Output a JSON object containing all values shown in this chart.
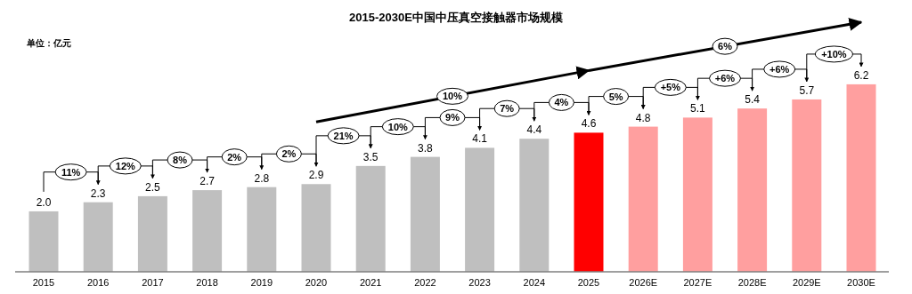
{
  "chart_data": {
    "type": "bar",
    "title": "2015-2030E中国中压真空接触器市场规模",
    "categories": [
      "2015",
      "2016",
      "2017",
      "2018",
      "2019",
      "2020",
      "2021",
      "2022",
      "2023",
      "2024",
      "2025",
      "2026E",
      "2027E",
      "2028E",
      "2029E",
      "2030E"
    ],
    "values": [
      2.0,
      2.3,
      2.5,
      2.7,
      2.8,
      2.9,
      3.5,
      3.8,
      4.1,
      4.4,
      4.6,
      4.8,
      5.1,
      5.4,
      5.7,
      6.2
    ],
    "colors": [
      "#bfbfbf",
      "#bfbfbf",
      "#bfbfbf",
      "#bfbfbf",
      "#bfbfbf",
      "#bfbfbf",
      "#bfbfbf",
      "#bfbfbf",
      "#bfbfbf",
      "#bfbfbf",
      "#ff0000",
      "#ff9f9f",
      "#ff9f9f",
      "#ff9f9f",
      "#ff9f9f",
      "#ff9f9f"
    ],
    "value_labels": [
      "2.0",
      "2.3",
      "2.5",
      "2.7",
      "2.8",
      "2.9",
      "3.5",
      "3.8",
      "4.1",
      "4.4",
      "4.6",
      "4.8",
      "5.1",
      "5.4",
      "5.7",
      "6.2"
    ],
    "annotations": [
      "11%",
      "12%",
      "8%",
      "2%",
      "2%",
      "21%",
      "10%",
      "9%",
      "7%",
      "4%",
      "5%",
      "+5%",
      "+6%",
      "+6%",
      "+10%",
      "单位：亿元",
      "10%",
      "6%"
    ]
  }
}
